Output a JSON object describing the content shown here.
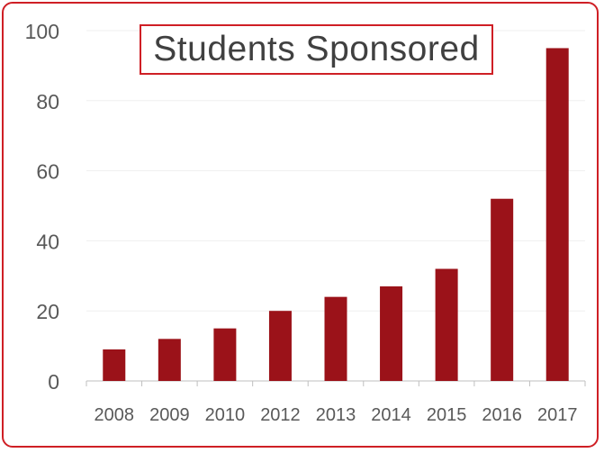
{
  "chart_data": {
    "type": "bar",
    "title": "Students Sponsored",
    "xlabel": "",
    "ylabel": "",
    "categories": [
      "2008",
      "2009",
      "2010",
      "2012",
      "2013",
      "2014",
      "2015",
      "2016",
      "2017"
    ],
    "values": [
      9,
      12,
      15,
      20,
      24,
      27,
      32,
      52,
      95
    ],
    "ylim": [
      0,
      100
    ],
    "yticks": [
      0,
      20,
      40,
      60,
      80,
      100
    ],
    "grid": true,
    "legend": "none",
    "colors": {
      "bar": "#9b1219",
      "frame": "#cf1f25",
      "grid": "#efefef",
      "text": "#595959",
      "title": "#404040"
    }
  }
}
